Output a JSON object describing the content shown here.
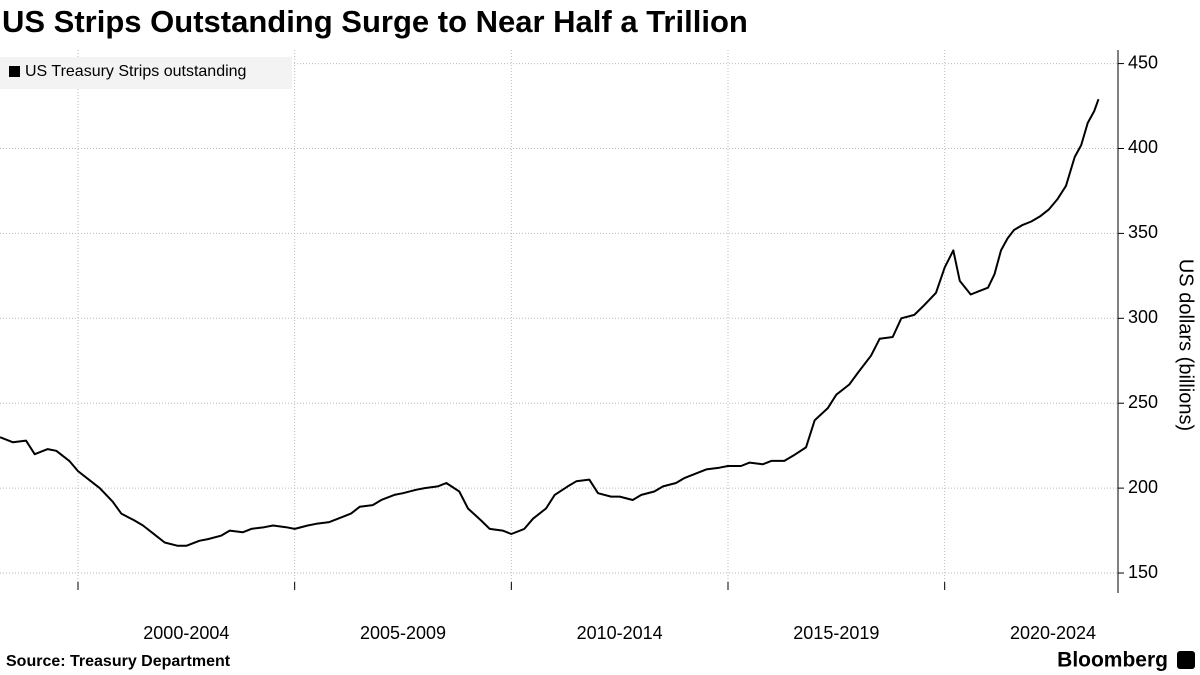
{
  "chart_data": {
    "type": "line",
    "title": "US Strips Outstanding Surge to Near Half a Trillion",
    "source": "Source: Treasury Department",
    "brand": "Bloomberg",
    "y_label": "US dollars (billions)",
    "series": [
      {
        "name": "US Treasury Strips outstanding",
        "color": "#000000",
        "x": [
          1998.2,
          1998.5,
          1998.8,
          1999.0,
          1999.3,
          1999.5,
          1999.8,
          2000.0,
          2000.3,
          2000.5,
          2000.8,
          2001.0,
          2001.3,
          2001.5,
          2001.8,
          2002.0,
          2002.3,
          2002.5,
          2002.8,
          2003.0,
          2003.3,
          2003.5,
          2003.8,
          2004.0,
          2004.3,
          2004.5,
          2004.8,
          2005.0,
          2005.3,
          2005.5,
          2005.8,
          2006.0,
          2006.3,
          2006.5,
          2006.8,
          2007.0,
          2007.3,
          2007.5,
          2007.8,
          2008.0,
          2008.3,
          2008.5,
          2008.8,
          2009.0,
          2009.3,
          2009.5,
          2009.8,
          2010.0,
          2010.3,
          2010.5,
          2010.8,
          2011.0,
          2011.3,
          2011.5,
          2011.8,
          2012.0,
          2012.3,
          2012.5,
          2012.8,
          2013.0,
          2013.3,
          2013.5,
          2013.8,
          2014.0,
          2014.3,
          2014.5,
          2014.8,
          2015.0,
          2015.3,
          2015.5,
          2015.8,
          2016.0,
          2016.3,
          2016.5,
          2016.8,
          2017.0,
          2017.3,
          2017.5,
          2017.8,
          2018.0,
          2018.3,
          2018.5,
          2018.8,
          2019.0,
          2019.3,
          2019.5,
          2019.8,
          2020.0,
          2020.2,
          2020.35,
          2020.6,
          2020.8,
          2021.0,
          2021.15,
          2021.3,
          2021.45,
          2021.6,
          2021.8,
          2022.0,
          2022.2,
          2022.4,
          2022.6,
          2022.8,
          2023.0,
          2023.15,
          2023.3,
          2023.45,
          2023.55
        ],
        "values": [
          230,
          227,
          228,
          220,
          223,
          222,
          216,
          210,
          204,
          200,
          192,
          185,
          181,
          178,
          172,
          168,
          166,
          166,
          169,
          170,
          172,
          175,
          174,
          176,
          177,
          178,
          177,
          176,
          178,
          179,
          180,
          182,
          185,
          189,
          190,
          193,
          196,
          197,
          199,
          200,
          201,
          203,
          198,
          188,
          181,
          176,
          175,
          173,
          176,
          182,
          188,
          196,
          201,
          204,
          205,
          197,
          195,
          195,
          193,
          196,
          198,
          201,
          203,
          206,
          209,
          211,
          212,
          213,
          213,
          215,
          214,
          216,
          216,
          219,
          224,
          240,
          247,
          255,
          261,
          268,
          278,
          288,
          289,
          300,
          302,
          307,
          315,
          330,
          340,
          322,
          314,
          316,
          318,
          326,
          340,
          347,
          352,
          355,
          357,
          360,
          364,
          370,
          378,
          395,
          402,
          415,
          422,
          429
        ]
      }
    ],
    "xlim": [
      1998.2,
      2024.0
    ],
    "xgrid": [
      2000,
      2005,
      2010,
      2015,
      2020
    ],
    "xticks": [
      {
        "value": 2002.5,
        "label": "2000-2004"
      },
      {
        "value": 2007.5,
        "label": "2005-2009"
      },
      {
        "value": 2012.5,
        "label": "2010-2014"
      },
      {
        "value": 2017.5,
        "label": "2015-2019"
      },
      {
        "value": 2022.5,
        "label": "2020-2024"
      }
    ],
    "ylim": [
      140,
      458
    ],
    "yticks": [
      150,
      200,
      250,
      300,
      350,
      400,
      450
    ],
    "grid": true,
    "legend": "top-left"
  }
}
